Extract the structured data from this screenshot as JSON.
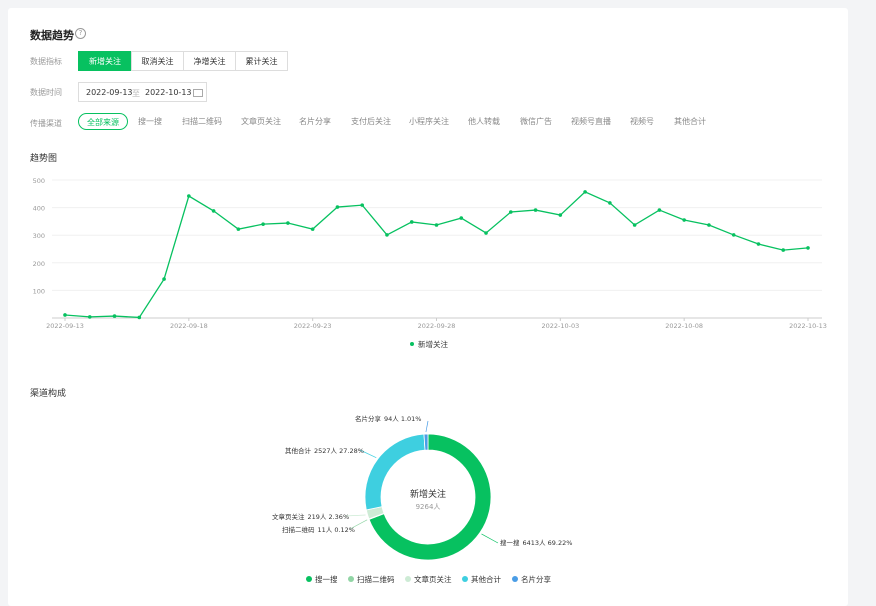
{
  "title": "数据趋势",
  "filters": [
    {
      "label": "数据指标",
      "options": [
        "新增关注",
        "取消关注",
        "净增关注",
        "累计关注"
      ],
      "selected": 0
    },
    {
      "label": "数据时间",
      "start": "2022-09-13",
      "separator": "至",
      "end": "2022-10-13"
    },
    {
      "label": "传播渠道",
      "options": [
        "全部来源",
        "搜一搜",
        "扫描二维码",
        "文章页关注",
        "名片分享",
        "支付后关注",
        "小程序关注",
        "他人转载",
        "微信广告",
        "视频号直播",
        "视频号",
        "其他合计"
      ],
      "selected": 0
    }
  ],
  "chart_data": [
    {
      "type": "line",
      "title": "趋势图",
      "x": [
        "2022-09-13",
        "2022-09-14",
        "2022-09-15",
        "2022-09-16",
        "2022-09-17",
        "2022-09-18",
        "2022-09-19",
        "2022-09-20",
        "2022-09-21",
        "2022-09-22",
        "2022-09-23",
        "2022-09-24",
        "2022-09-25",
        "2022-09-26",
        "2022-09-27",
        "2022-09-28",
        "2022-09-29",
        "2022-09-30",
        "2022-10-01",
        "2022-10-02",
        "2022-10-03",
        "2022-10-04",
        "2022-10-05",
        "2022-10-06",
        "2022-10-07",
        "2022-10-08",
        "2022-10-09",
        "2022-10-10",
        "2022-10-11",
        "2022-10-12",
        "2022-10-13"
      ],
      "series": [
        {
          "name": "新增关注",
          "color": "#07c160",
          "values": [
            11,
            4,
            7,
            2,
            141,
            442,
            388,
            322,
            340,
            344,
            322,
            402,
            409,
            301,
            348,
            337,
            362,
            308,
            384,
            391,
            373,
            457,
            417,
            337,
            391,
            355,
            337,
            301,
            268,
            246,
            254
          ]
        }
      ],
      "xticks": [
        "2022-09-13",
        "2022-09-18",
        "2022-09-23",
        "2022-09-28",
        "2022-10-03",
        "2022-10-08",
        "2022-10-13"
      ],
      "ylim": [
        0,
        500
      ],
      "yticks": [
        100,
        200,
        300,
        400,
        500
      ],
      "grid": true
    },
    {
      "type": "pie",
      "title": "渠道构成",
      "center_label": "新增关注",
      "center_value_label": "9264人",
      "categories": [
        "搜一搜",
        "扫描二维码",
        "文章页关注",
        "其他合计",
        "名片分享"
      ],
      "values": [
        6413,
        11,
        219,
        2527,
        94
      ],
      "value_labels": [
        "6413人 69.22%",
        "11人 0.12%",
        "219人 2.36%",
        "2527人 27.28%",
        "94人 1.01%"
      ],
      "colors": [
        "#07c160",
        "#91d5a5",
        "#cdebd5",
        "#3ecfe0",
        "#4a9de6"
      ]
    }
  ]
}
